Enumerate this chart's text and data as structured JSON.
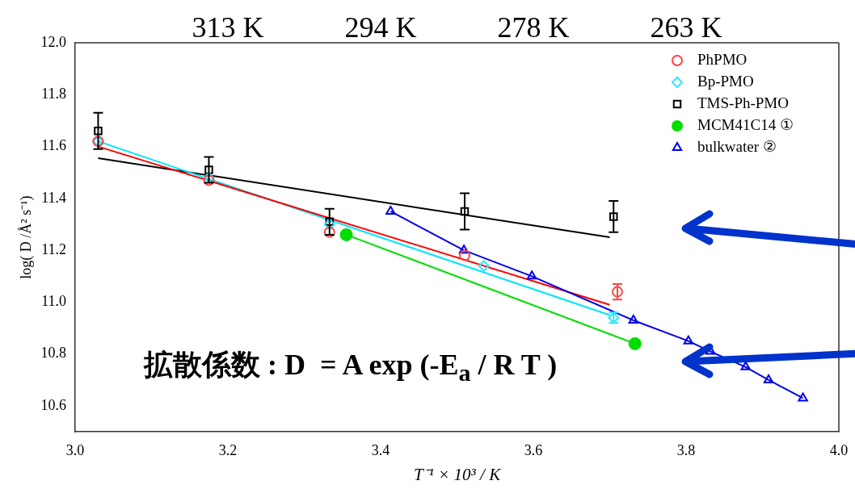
{
  "chart_data": {
    "type": "scatter",
    "xlabel": "T⁻¹ × 10³ / K",
    "ylabel": "log( D /Å² s⁻¹)",
    "xlim": [
      3.0,
      4.0
    ],
    "xticks": [
      {
        "value": 3.0,
        "label": "3.0"
      },
      {
        "value": 3.2,
        "label": "3.2"
      },
      {
        "value": 3.4,
        "label": "3.4"
      },
      {
        "value": 3.6,
        "label": "3.6"
      },
      {
        "value": 3.8,
        "label": "3.8"
      },
      {
        "value": 4.0,
        "label": "4.0"
      }
    ],
    "ylim": [
      10.5,
      12.0
    ],
    "yticks": [
      {
        "value": 10.6,
        "label": "10.6"
      },
      {
        "value": 10.8,
        "label": "10.8"
      },
      {
        "value": 11.0,
        "label": "11.0"
      },
      {
        "value": 11.2,
        "label": "11.2"
      },
      {
        "value": 11.4,
        "label": "11.4"
      },
      {
        "value": 11.6,
        "label": "11.6"
      },
      {
        "value": 11.8,
        "label": "11.8"
      },
      {
        "value": 12.0,
        "label": "12.0"
      }
    ],
    "grid": false,
    "legend": "top right",
    "series": [
      {
        "name": "PhPMO",
        "marker": "circle",
        "color": "#ff4444",
        "x": [
          3.03,
          3.175,
          3.333,
          3.51,
          3.71
        ],
        "values": [
          11.62,
          11.47,
          11.27,
          11.18,
          11.04
        ],
        "errors": [
          null,
          null,
          null,
          null,
          0.03
        ]
      },
      {
        "name": "Bp-PMO",
        "marker": "diamond",
        "color": "#33e5ff",
        "x": [
          3.03,
          3.175,
          3.333,
          3.535,
          3.705
        ],
        "values": [
          11.62,
          11.48,
          11.3,
          11.14,
          10.94
        ],
        "errors": [
          null,
          null,
          null,
          null,
          0.02
        ]
      },
      {
        "name": "TMS-Ph-PMO",
        "marker": "square",
        "color": "#000000",
        "x": [
          3.03,
          3.175,
          3.333,
          3.51,
          3.705
        ],
        "values": [
          11.66,
          11.51,
          11.31,
          11.35,
          11.33
        ],
        "errors": [
          0.07,
          0.05,
          0.05,
          0.07,
          0.06
        ]
      },
      {
        "name": "MCM41C14 ①",
        "type": "line",
        "marker": "circle",
        "color": "#00dd00",
        "x": [
          3.355,
          3.733
        ],
        "values": [
          11.26,
          10.84
        ]
      },
      {
        "name": "bulkwater ②",
        "type": "line",
        "marker": "triangle",
        "color": "#0000ee",
        "x": [
          3.413,
          3.509,
          3.598,
          3.731,
          3.803,
          3.832,
          3.878,
          3.908,
          3.953
        ],
        "values": [
          11.35,
          11.2,
          11.1,
          10.93,
          10.85,
          10.81,
          10.75,
          10.7,
          10.63
        ]
      },
      {
        "type": "line",
        "marker": "none",
        "color": "#ff0000",
        "x": [
          3.03,
          3.7
        ],
        "values": [
          11.6,
          10.99
        ]
      },
      {
        "type": "line",
        "marker": "none",
        "color": "#00e5ff",
        "x": [
          3.03,
          3.7
        ],
        "values": [
          11.62,
          10.95
        ]
      },
      {
        "type": "line",
        "marker": "none",
        "color": "#000000",
        "x": [
          3.03,
          3.7
        ],
        "values": [
          11.555,
          11.25
        ]
      }
    ],
    "annotations": [
      "拡散係数 : D  = A exp (-E$_{a}$ / R T )",
      "313 K",
      "294 K",
      "278 K",
      "263 K"
    ]
  }
}
